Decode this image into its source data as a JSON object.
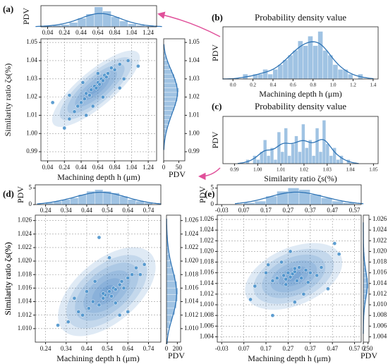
{
  "chart_data": [
    {
      "type": "joint",
      "label": "(a)",
      "xlabel": "Machining depth h (μm)",
      "ylabel": "Similarity ratio ζs(%)",
      "x": [
        0.24,
        0.3,
        0.36,
        0.4,
        0.44,
        0.48,
        0.5,
        0.54,
        0.56,
        0.6,
        0.62,
        0.64,
        0.66,
        0.68,
        0.7,
        0.72,
        0.74,
        0.76,
        0.8,
        0.84,
        0.9,
        0.95,
        1.0,
        0.1,
        0.3,
        0.5,
        0.7,
        0.9,
        1.12,
        0.64,
        0.58,
        0.46
      ],
      "y": [
        1.003,
        1.008,
        1.012,
        1.015,
        1.017,
        1.019,
        1.022,
        1.021,
        1.024,
        1.026,
        1.025,
        1.028,
        1.027,
        1.03,
        1.029,
        1.032,
        1.031,
        1.033,
        1.036,
        1.035,
        1.038,
        1.03,
        1.04,
        1.017,
        1.021,
        1.01,
        1.02,
        1.025,
        1.037,
        1.033,
        1.015,
        1.028
      ],
      "xlim": [
        -0.04,
        1.34
      ],
      "xticks": [
        0.04,
        0.24,
        0.44,
        0.64,
        0.84,
        1.04,
        1.24
      ],
      "ylim": [
        0.985,
        1.052
      ],
      "yticks": [
        0.99,
        {
          "value": 1,
          "label": "1.00"
        },
        1.01,
        1.02,
        1.03,
        1.04,
        1.05
      ],
      "grid": true,
      "top_hist": {
        "ylabel": "PDV",
        "bins": [
          0,
          0.1,
          0.2,
          0.3,
          0.4,
          0.5,
          0.6,
          0.7,
          0.8,
          0.9,
          1.0,
          1.1,
          1.2,
          1.3
        ],
        "values": [
          0.1,
          0.2,
          0.3,
          0.6,
          1.2,
          1.8,
          2.8,
          2.2,
          1.4,
          0.8,
          0.4,
          0.2,
          0.1
        ],
        "ylim": [
          0,
          3
        ]
      },
      "right_hist": {
        "xlabel": "PDV",
        "bins": [
          0.995,
          0.9975,
          1.0,
          1.0025,
          1.005,
          1.0075,
          1.01,
          1.0125,
          1.015,
          1.0175,
          1.02,
          1.0225,
          1.025,
          1.0275,
          1.03,
          1.0325,
          1.035,
          1.0375,
          1.04,
          1.0425,
          1.045
        ],
        "values": [
          3,
          5,
          8,
          12,
          18,
          22,
          28,
          35,
          40,
          45,
          48,
          50,
          45,
          40,
          35,
          28,
          20,
          14,
          8,
          4
        ],
        "xlim": [
          0,
          70
        ],
        "xticks": [
          0,
          50
        ]
      }
    },
    {
      "type": "histogram",
      "label": "(b)",
      "title": "Probability density value",
      "xlabel": "Machining depth h (μm)",
      "ylabel": "PDV",
      "bins": [
        0,
        0.05,
        0.1,
        0.15,
        0.2,
        0.25,
        0.3,
        0.35,
        0.4,
        0.45,
        0.5,
        0.55,
        0.6,
        0.65,
        0.7,
        0.75,
        0.8,
        0.85,
        0.9,
        0.95,
        1.0,
        1.05,
        1.1,
        1.15,
        1.2,
        1.25,
        1.3
      ],
      "values": [
        0,
        0,
        1,
        0,
        1,
        1,
        2,
        1,
        2,
        3,
        4,
        5,
        6,
        8,
        7,
        9,
        7,
        10,
        6,
        5,
        3,
        2,
        2,
        1,
        0,
        1
      ],
      "xlim": [
        -0.1,
        1.45
      ],
      "xticks": [
        {
          "value": 0,
          "label": "0.0"
        },
        0.2,
        0.4,
        0.6,
        0.8,
        {
          "value": 1,
          "label": "1.0"
        },
        1.2,
        1.4
      ],
      "ylim": [
        0,
        11
      ]
    },
    {
      "type": "histogram",
      "label": "(c)",
      "title": "Probability density value",
      "xlabel": "Similarity ratio ζs(%)",
      "ylabel": "PDV",
      "bins": [
        0.995,
        0.9965,
        0.998,
        0.9995,
        1.001,
        1.0025,
        1.004,
        1.0055,
        1.007,
        1.0085,
        1.01,
        1.0115,
        1.013,
        1.0145,
        1.016,
        1.0175,
        1.019,
        1.0205,
        1.022,
        1.0235,
        1.025,
        1.0265,
        1.028,
        1.0295,
        1.031,
        1.0325,
        1.034,
        1.0355,
        1.037,
        1.0385,
        1.04
      ],
      "values": [
        1,
        0,
        2,
        1,
        3,
        6,
        2,
        4,
        1,
        8,
        3,
        9,
        2,
        5,
        7,
        3,
        10,
        4,
        6,
        2,
        9,
        3,
        11,
        5,
        2,
        4,
        1,
        2,
        0,
        1
      ],
      "xlim": [
        0.985,
        1.052
      ],
      "xticks": [
        0.99,
        {
          "value": 1,
          "label": "1.00"
        },
        1.01,
        1.02,
        1.03,
        1.04,
        1.05
      ],
      "ylim": [
        0,
        12
      ]
    },
    {
      "type": "joint",
      "label": "(d)",
      "xlabel": "Machining depth h (μm)",
      "ylabel": "Similarity ratio ζs(%)",
      "x": [
        0.3,
        0.35,
        0.4,
        0.42,
        0.45,
        0.47,
        0.5,
        0.52,
        0.53,
        0.55,
        0.56,
        0.57,
        0.58,
        0.6,
        0.61,
        0.62,
        0.64,
        0.66,
        0.68,
        0.7,
        0.72,
        0.5,
        0.55,
        0.6,
        0.48,
        0.44,
        0.64,
        0.58,
        0.52,
        0.38
      ],
      "y": [
        1.0105,
        1.011,
        1.0125,
        1.012,
        1.013,
        1.014,
        1.0135,
        1.0145,
        1.015,
        1.0155,
        1.0148,
        1.016,
        1.0158,
        1.0165,
        1.017,
        1.016,
        1.0175,
        1.018,
        1.019,
        1.018,
        1.0195,
        1.0235,
        1.0205,
        1.012,
        1.017,
        1.0155,
        1.0125,
        1.0138,
        1.0152,
        1.0145
      ],
      "xlim": [
        0.19,
        0.8
      ],
      "xticks": [
        0.24,
        0.34,
        0.44,
        0.54,
        0.64,
        0.74
      ],
      "ylim": [
        1.008,
        1.0268
      ],
      "yticks": [
        {
          "value": 1.01,
          "label": "1.010"
        },
        1.012,
        1.014,
        1.016,
        1.018,
        {
          "value": 1.02,
          "label": "1.020"
        },
        1.022,
        1.024,
        1.026
      ],
      "grid": true,
      "top_hist": {
        "ylabel": "PDV",
        "bins": [
          0.24,
          0.28,
          0.32,
          0.36,
          0.4,
          0.44,
          0.48,
          0.52,
          0.56,
          0.6,
          0.64,
          0.68,
          0.72,
          0.76
        ],
        "values": [
          0.5,
          1,
          1.5,
          2,
          3,
          4,
          4.5,
          4,
          3.5,
          2.5,
          1.5,
          1,
          0.5
        ],
        "ylim": [
          0,
          6
        ],
        "yticks": [
          0,
          5
        ]
      },
      "right_hist": {
        "xlabel": "PDV",
        "bins": [
          1.009,
          1.01,
          1.011,
          1.012,
          1.013,
          1.014,
          1.015,
          1.016,
          1.017,
          1.018,
          1.019,
          1.02,
          1.021,
          1.022,
          1.023,
          1.024,
          1.025
        ],
        "values": [
          20,
          60,
          100,
          150,
          180,
          200,
          210,
          190,
          160,
          120,
          80,
          50,
          30,
          20,
          10,
          5
        ],
        "xlim": [
          0,
          260
        ],
        "xticks": [
          0,
          200
        ]
      }
    },
    {
      "type": "joint",
      "label": "(e)",
      "xlabel": "Machining depth h (μm)",
      "ylabel": "Similarity ratio ζs(%)",
      "x": [
        0.12,
        0.17,
        0.2,
        0.22,
        0.25,
        0.26,
        0.27,
        0.28,
        0.29,
        0.3,
        0.31,
        0.32,
        0.33,
        0.35,
        0.37,
        0.4,
        0.45,
        0.5,
        0.1,
        0.2,
        0.3,
        0.24,
        0.34,
        0.28,
        0.18,
        0.42,
        0.26,
        0.3,
        0.36,
        0.48
      ],
      "y": [
        1.0135,
        1.016,
        1.0145,
        1.015,
        1.0155,
        1.0148,
        1.016,
        1.0152,
        1.0158,
        1.0162,
        1.0145,
        1.017,
        1.015,
        1.0165,
        1.016,
        1.0155,
        1.013,
        1.0195,
        1.011,
        1.008,
        1.0105,
        1.018,
        1.012,
        1.02,
        1.0175,
        1.017,
        1.0138,
        1.0168,
        1.0142,
        1.0215
      ],
      "xlim": [
        -0.05,
        0.6
      ],
      "xticks": [
        -0.03,
        0.07,
        0.17,
        0.27,
        0.37,
        0.47,
        0.57
      ],
      "ylim": [
        1.003,
        1.0268
      ],
      "yticks": [
        1.004,
        1.006,
        1.008,
        {
          "value": 1.01,
          "label": "1.010"
        },
        1.012,
        1.014,
        1.016,
        1.018,
        {
          "value": 1.02,
          "label": "1.020"
        },
        1.022,
        1.024,
        1.026
      ],
      "grid": true,
      "top_hist": {
        "ylabel": "PDV",
        "bins": [
          0.07,
          0.12,
          0.17,
          0.22,
          0.27,
          0.32,
          0.37,
          0.42,
          0.47,
          0.52,
          0.57
        ],
        "values": [
          0.5,
          1,
          2.5,
          4,
          5,
          4.5,
          3,
          2,
          1,
          0.5
        ],
        "ylim": [
          0,
          6
        ],
        "yticks": [
          0,
          5
        ]
      },
      "right_hist": {
        "xlabel": "PDV",
        "bins": [
          1.006,
          1.007,
          1.008,
          1.009,
          1.01,
          1.011,
          1.012,
          1.013,
          1.014,
          1.015,
          1.016,
          1.017,
          1.018,
          1.019,
          1.02,
          1.021,
          1.022,
          1.023,
          1.024
        ],
        "values": [
          5,
          10,
          20,
          40,
          80,
          150,
          220,
          260,
          240,
          180,
          120,
          70,
          40,
          20,
          10,
          5,
          3,
          2
        ],
        "xlim": [
          0,
          300
        ],
        "xticks": [
          0,
          250
        ]
      }
    }
  ]
}
